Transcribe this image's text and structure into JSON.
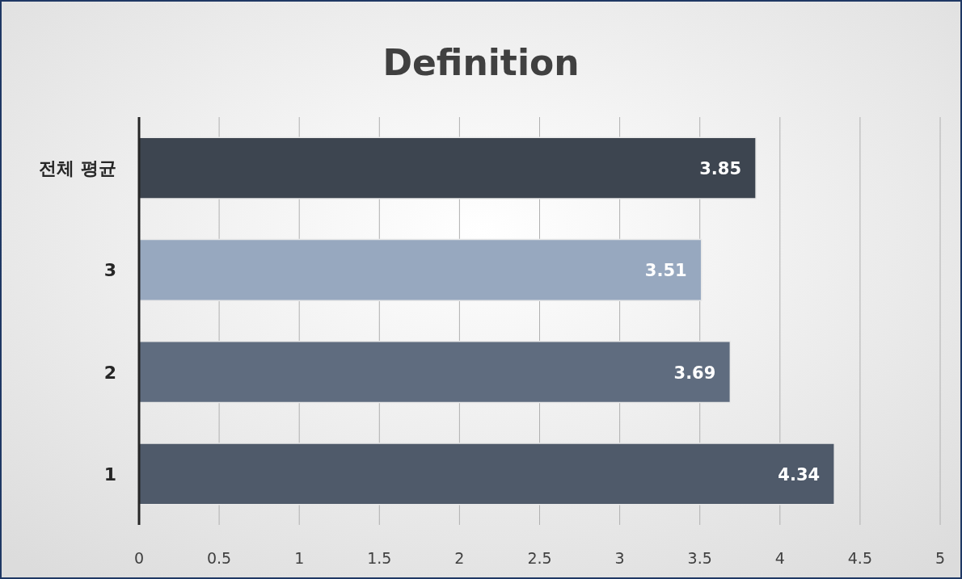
{
  "chart_data": {
    "type": "bar",
    "orientation": "horizontal",
    "title": "Definition",
    "categories": [
      "전체 평균",
      "3",
      "2",
      "1"
    ],
    "values": [
      3.85,
      3.51,
      3.69,
      4.34
    ],
    "colors": [
      "#3d4550",
      "#97a8bf",
      "#5f6c7f",
      "#4f5a6a"
    ],
    "xlim": [
      0,
      5
    ],
    "xticks": [
      0,
      0.5,
      1,
      1.5,
      2,
      2.5,
      3,
      3.5,
      4,
      4.5,
      5
    ],
    "grid": "x",
    "data_labels": true
  }
}
